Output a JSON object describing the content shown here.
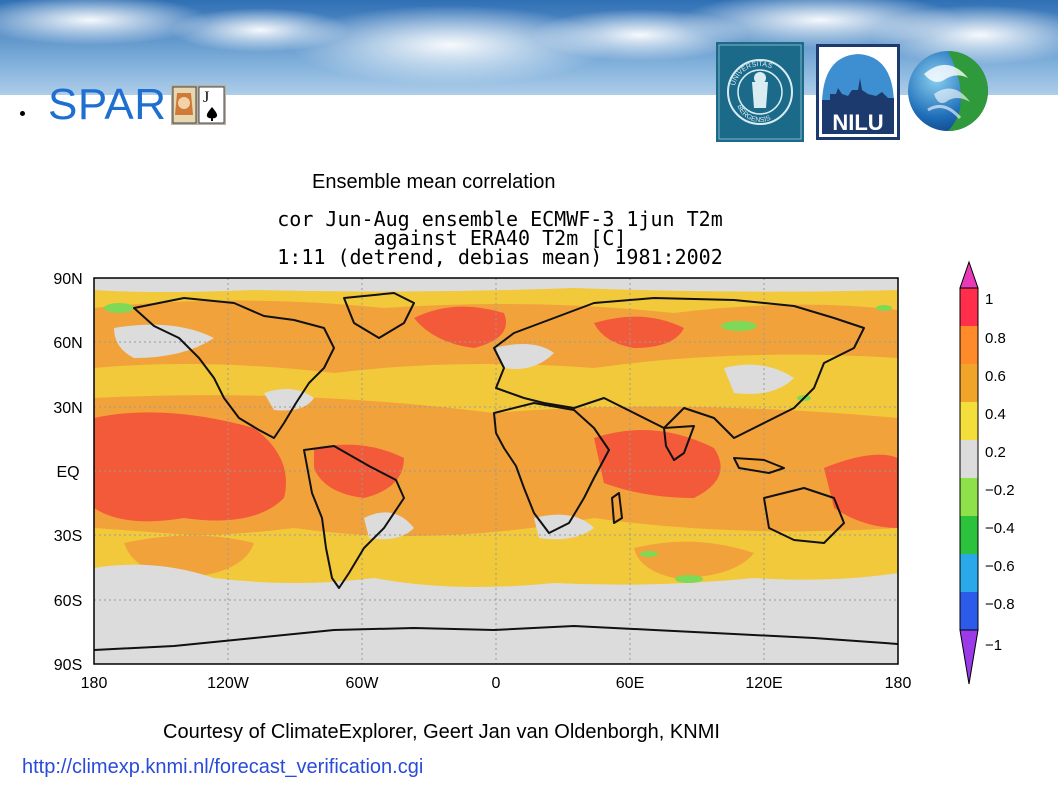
{
  "slide": {
    "title": "SPAR",
    "subtitle": "Ensemble mean correlation",
    "credit": "Courtesy of ClimateExplorer, Geert Jan van Oldenborgh, KNMI",
    "url": "http://climexp.knmi.nl/forecast_verification.cgi"
  },
  "logos": [
    "UNIVERSITAS BERGENSIS",
    "NILU"
  ],
  "map": {
    "title_lines": [
      "cor Jun-Aug ensemble ECMWF-3 1jun T2m",
      "against ERA40 T2m [C]",
      "1:11 (detrend, debias mean) 1981:2002"
    ],
    "lat_labels": [
      "90N",
      "60N",
      "30N",
      "EQ",
      "30S",
      "60S",
      "90S"
    ],
    "lon_labels": [
      "180",
      "120W",
      "60W",
      "0",
      "60E",
      "120E",
      "180"
    ],
    "colorbar_labels": [
      "1",
      "0.8",
      "0.6",
      "0.4",
      "0.2",
      "−0.2",
      "−0.4",
      "−0.6",
      "−0.8",
      "−1"
    ],
    "colorbar_colors": [
      "#ff2e4a",
      "#ff8a2a",
      "#f0a52a",
      "#f3de3b",
      "#dcdcdc",
      "#8fe14a",
      "#2bc33b",
      "#2aa9e8",
      "#2b5be8"
    ],
    "colors": {
      "ocean_base": "#f2c93a",
      "high": "#f25a3a",
      "mid": "#f2a23a",
      "low": "#dcdcdc",
      "green": "#7ed957",
      "coast": "#111111"
    }
  }
}
